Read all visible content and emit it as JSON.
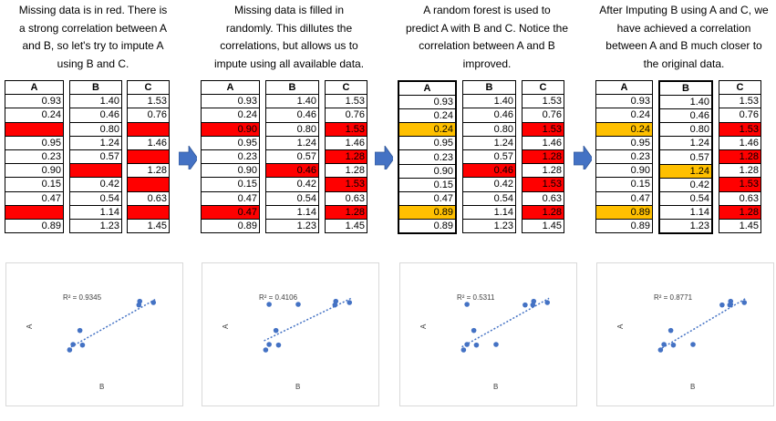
{
  "panels": [
    {
      "caption": [
        "Missing data is in red. There is",
        "a strong correlation between A",
        "and B, so let's try to impute A",
        "using B and C."
      ],
      "headers": [
        "A",
        "B",
        "C"
      ],
      "rows": [
        [
          {
            "v": "0.93"
          },
          {
            "v": "1.40"
          },
          {
            "v": "1.53"
          }
        ],
        [
          {
            "v": "0.24"
          },
          {
            "v": "0.46"
          },
          {
            "v": "0.76"
          }
        ],
        [
          {
            "v": "",
            "c": "red"
          },
          {
            "v": "0.80"
          },
          {
            "v": "",
            "c": "red"
          }
        ],
        [
          {
            "v": "0.95"
          },
          {
            "v": "1.24"
          },
          {
            "v": "1.46"
          }
        ],
        [
          {
            "v": "0.23"
          },
          {
            "v": "0.57"
          },
          {
            "v": "",
            "c": "red"
          }
        ],
        [
          {
            "v": "0.90"
          },
          {
            "v": "",
            "c": "red"
          },
          {
            "v": "1.28"
          }
        ],
        [
          {
            "v": "0.15"
          },
          {
            "v": "0.42"
          },
          {
            "v": "",
            "c": "red"
          }
        ],
        [
          {
            "v": "0.47"
          },
          {
            "v": "0.54"
          },
          {
            "v": "0.63"
          }
        ],
        [
          {
            "v": "",
            "c": "red"
          },
          {
            "v": "1.14"
          },
          {
            "v": "",
            "c": "red"
          }
        ],
        [
          {
            "v": "0.89"
          },
          {
            "v": "1.23"
          },
          {
            "v": "1.45"
          }
        ]
      ],
      "highlight_col": -1,
      "chart": {
        "r2": "R² = 0.9345",
        "xlabel": "B",
        "ylabel": "A",
        "points": [
          [
            1.4,
            0.93
          ],
          [
            0.46,
            0.24
          ],
          [
            0.57,
            0.23
          ],
          [
            1.23,
            0.89
          ],
          [
            1.24,
            0.95
          ],
          [
            0.42,
            0.15
          ],
          [
            0.54,
            0.47
          ]
        ],
        "xlim": [
          0,
          1.6
        ],
        "ylim": [
          -0.3,
          1.2
        ],
        "trend": [
          [
            0.4,
            0.17
          ],
          [
            1.42,
            0.98
          ]
        ]
      }
    },
    {
      "caption": [
        "Missing data is filled in",
        "randomly. This dillutes the",
        "correlations, but allows us to",
        "impute using all available data."
      ],
      "headers": [
        "A",
        "B",
        "C"
      ],
      "rows": [
        [
          {
            "v": "0.93"
          },
          {
            "v": "1.40"
          },
          {
            "v": "1.53"
          }
        ],
        [
          {
            "v": "0.24"
          },
          {
            "v": "0.46"
          },
          {
            "v": "0.76"
          }
        ],
        [
          {
            "v": "0.90",
            "c": "red"
          },
          {
            "v": "0.80"
          },
          {
            "v": "1.53",
            "c": "red"
          }
        ],
        [
          {
            "v": "0.95"
          },
          {
            "v": "1.24"
          },
          {
            "v": "1.46"
          }
        ],
        [
          {
            "v": "0.23"
          },
          {
            "v": "0.57"
          },
          {
            "v": "1.28",
            "c": "red"
          }
        ],
        [
          {
            "v": "0.90"
          },
          {
            "v": "0.46",
            "c": "red"
          },
          {
            "v": "1.28"
          }
        ],
        [
          {
            "v": "0.15"
          },
          {
            "v": "0.42"
          },
          {
            "v": "1.53",
            "c": "red"
          }
        ],
        [
          {
            "v": "0.47"
          },
          {
            "v": "0.54"
          },
          {
            "v": "0.63"
          }
        ],
        [
          {
            "v": "0.47",
            "c": "red"
          },
          {
            "v": "1.14"
          },
          {
            "v": "1.28",
            "c": "red"
          }
        ],
        [
          {
            "v": "0.89"
          },
          {
            "v": "1.23"
          },
          {
            "v": "1.45"
          }
        ]
      ],
      "highlight_col": -1,
      "chart": {
        "r2": "R² = 0.4106",
        "xlabel": "B",
        "ylabel": "A",
        "points": [
          [
            0.46,
            0.9
          ],
          [
            1.4,
            0.93
          ],
          [
            1.24,
            0.95
          ],
          [
            1.23,
            0.89
          ],
          [
            0.57,
            0.23
          ],
          [
            0.46,
            0.24
          ],
          [
            0.42,
            0.15
          ],
          [
            0.54,
            0.47
          ],
          [
            0.8,
            0.9
          ]
        ],
        "xlim": [
          0,
          1.6
        ],
        "ylim": [
          -0.3,
          1.2
        ],
        "trend": [
          [
            0.4,
            0.3
          ],
          [
            1.42,
            1.0
          ]
        ]
      }
    },
    {
      "caption": [
        "A random forest is used to",
        "predict A with B and C. Notice the",
        "correlation between A and B",
        "improved."
      ],
      "headers": [
        "A",
        "B",
        "C"
      ],
      "rows": [
        [
          {
            "v": "0.93"
          },
          {
            "v": "1.40"
          },
          {
            "v": "1.53"
          }
        ],
        [
          {
            "v": "0.24"
          },
          {
            "v": "0.46"
          },
          {
            "v": "0.76"
          }
        ],
        [
          {
            "v": "0.24",
            "c": "yellow"
          },
          {
            "v": "0.80"
          },
          {
            "v": "1.53",
            "c": "red"
          }
        ],
        [
          {
            "v": "0.95"
          },
          {
            "v": "1.24"
          },
          {
            "v": "1.46"
          }
        ],
        [
          {
            "v": "0.23"
          },
          {
            "v": "0.57"
          },
          {
            "v": "1.28",
            "c": "red"
          }
        ],
        [
          {
            "v": "0.90"
          },
          {
            "v": "0.46",
            "c": "red"
          },
          {
            "v": "1.28"
          }
        ],
        [
          {
            "v": "0.15"
          },
          {
            "v": "0.42"
          },
          {
            "v": "1.53",
            "c": "red"
          }
        ],
        [
          {
            "v": "0.47"
          },
          {
            "v": "0.54"
          },
          {
            "v": "0.63"
          }
        ],
        [
          {
            "v": "0.89",
            "c": "yellow"
          },
          {
            "v": "1.14"
          },
          {
            "v": "1.28",
            "c": "red"
          }
        ],
        [
          {
            "v": "0.89"
          },
          {
            "v": "1.23"
          },
          {
            "v": "1.45"
          }
        ]
      ],
      "highlight_col": 0,
      "chart": {
        "r2": "R² = 0.5311",
        "xlabel": "B",
        "ylabel": "A",
        "points": [
          [
            0.46,
            0.9
          ],
          [
            1.4,
            0.93
          ],
          [
            1.24,
            0.95
          ],
          [
            1.23,
            0.89
          ],
          [
            1.14,
            0.89
          ],
          [
            0.57,
            0.23
          ],
          [
            0.46,
            0.24
          ],
          [
            0.42,
            0.15
          ],
          [
            0.8,
            0.24
          ],
          [
            0.54,
            0.47
          ]
        ],
        "xlim": [
          0,
          1.6
        ],
        "ylim": [
          -0.3,
          1.2
        ],
        "trend": [
          [
            0.4,
            0.2
          ],
          [
            1.42,
            1.0
          ]
        ]
      }
    },
    {
      "caption": [
        "After Imputing B using A and C, we",
        "have achieved a correlation",
        "between A and B much closer to",
        "the original data."
      ],
      "headers": [
        "A",
        "B",
        "C"
      ],
      "rows": [
        [
          {
            "v": "0.93"
          },
          {
            "v": "1.40"
          },
          {
            "v": "1.53"
          }
        ],
        [
          {
            "v": "0.24"
          },
          {
            "v": "0.46"
          },
          {
            "v": "0.76"
          }
        ],
        [
          {
            "v": "0.24",
            "c": "yellow"
          },
          {
            "v": "0.80"
          },
          {
            "v": "1.53",
            "c": "red"
          }
        ],
        [
          {
            "v": "0.95"
          },
          {
            "v": "1.24"
          },
          {
            "v": "1.46"
          }
        ],
        [
          {
            "v": "0.23"
          },
          {
            "v": "0.57"
          },
          {
            "v": "1.28",
            "c": "red"
          }
        ],
        [
          {
            "v": "0.90"
          },
          {
            "v": "1.24",
            "c": "yellow"
          },
          {
            "v": "1.28"
          }
        ],
        [
          {
            "v": "0.15"
          },
          {
            "v": "0.42"
          },
          {
            "v": "1.53",
            "c": "red"
          }
        ],
        [
          {
            "v": "0.47"
          },
          {
            "v": "0.54"
          },
          {
            "v": "0.63"
          }
        ],
        [
          {
            "v": "0.89",
            "c": "yellow"
          },
          {
            "v": "1.14"
          },
          {
            "v": "1.28",
            "c": "red"
          }
        ],
        [
          {
            "v": "0.89"
          },
          {
            "v": "1.23"
          },
          {
            "v": "1.45"
          }
        ]
      ],
      "highlight_col": 1,
      "chart": {
        "r2": "R² = 0.8771",
        "xlabel": "B",
        "ylabel": "A",
        "points": [
          [
            1.4,
            0.93
          ],
          [
            1.24,
            0.95
          ],
          [
            1.23,
            0.89
          ],
          [
            1.14,
            0.89
          ],
          [
            1.24,
            0.9
          ],
          [
            0.57,
            0.23
          ],
          [
            0.46,
            0.24
          ],
          [
            0.42,
            0.15
          ],
          [
            0.8,
            0.24
          ],
          [
            0.54,
            0.47
          ]
        ],
        "xlim": [
          0,
          1.6
        ],
        "ylim": [
          -0.3,
          1.2
        ],
        "trend": [
          [
            0.4,
            0.15
          ],
          [
            1.42,
            1.0
          ]
        ]
      }
    }
  ],
  "colors": {
    "red": "#ff0000",
    "yellow": "#ffc000",
    "point": "#4472c4",
    "arrow": "#4472c4"
  }
}
